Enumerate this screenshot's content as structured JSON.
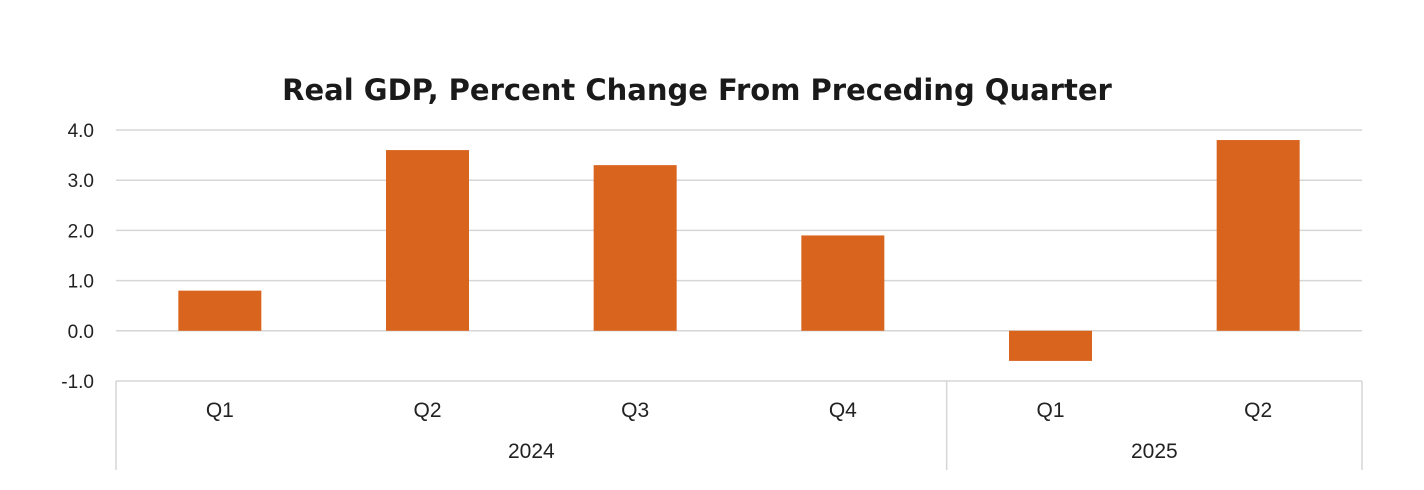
{
  "chart_data": {
    "type": "bar",
    "title": "Real GDP, Percent Change From Preceding Quarter",
    "categories": [
      "Q1",
      "Q2",
      "Q3",
      "Q4",
      "Q1",
      "Q2"
    ],
    "groups": [
      {
        "label": "2024",
        "categories": [
          "Q1",
          "Q2",
          "Q3",
          "Q4"
        ]
      },
      {
        "label": "2025",
        "categories": [
          "Q1",
          "Q2"
        ]
      }
    ],
    "series": [
      {
        "name": "Real GDP",
        "values": [
          0.8,
          3.6,
          3.3,
          1.9,
          -0.6,
          3.8
        ]
      }
    ],
    "ylim": [
      -1.0,
      4.0
    ],
    "yticks": [
      "4.0",
      "3.0",
      "2.0",
      "1.0",
      "0.0",
      "-1.0"
    ],
    "ytick_values": [
      4,
      3,
      2,
      1,
      0,
      -1
    ],
    "xlabel": "",
    "ylabel": "",
    "grid": true,
    "legend": "none",
    "bar_color": "#d9641e"
  }
}
